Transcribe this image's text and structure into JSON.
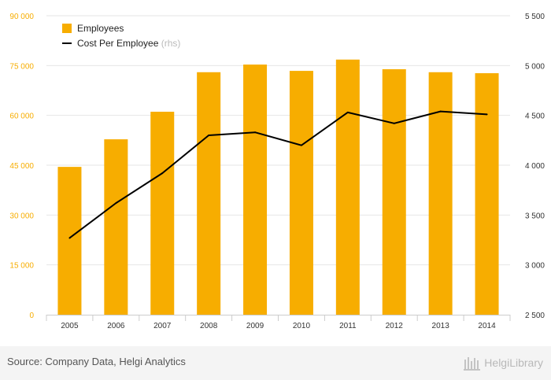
{
  "chart_data": {
    "type": "bar",
    "categories": [
      "2005",
      "2006",
      "2007",
      "2008",
      "2009",
      "2010",
      "2011",
      "2012",
      "2013",
      "2014"
    ],
    "series": [
      {
        "name": "Employees",
        "type": "bar",
        "axis": "left",
        "color": "#f7ad00",
        "values": [
          44500,
          52800,
          61100,
          73000,
          75300,
          73400,
          76800,
          73900,
          73000,
          72700
        ]
      },
      {
        "name": "Cost Per Employee",
        "name_suffix": "(rhs)",
        "type": "line",
        "axis": "right",
        "color": "#000000",
        "values": [
          3270,
          3620,
          3920,
          4300,
          4330,
          4200,
          4530,
          4420,
          4540,
          4510
        ]
      }
    ],
    "ylim_left": [
      0,
      90000
    ],
    "ylim_right": [
      2500,
      5500
    ],
    "yticks_left": [
      "0",
      "15 000",
      "30 000",
      "45 000",
      "60 000",
      "75 000",
      "90 000"
    ],
    "yticks_right": [
      "2 500",
      "3 000",
      "3 500",
      "4 000",
      "4 500",
      "5 000",
      "5 500"
    ],
    "grid": true,
    "legend_position": "top-left",
    "left_axis_color": "#f7ad00",
    "right_axis_color": "#333333"
  },
  "footer": {
    "source": "Source: Company Data, Helgi Analytics",
    "brand": "HelgiLibrary"
  }
}
